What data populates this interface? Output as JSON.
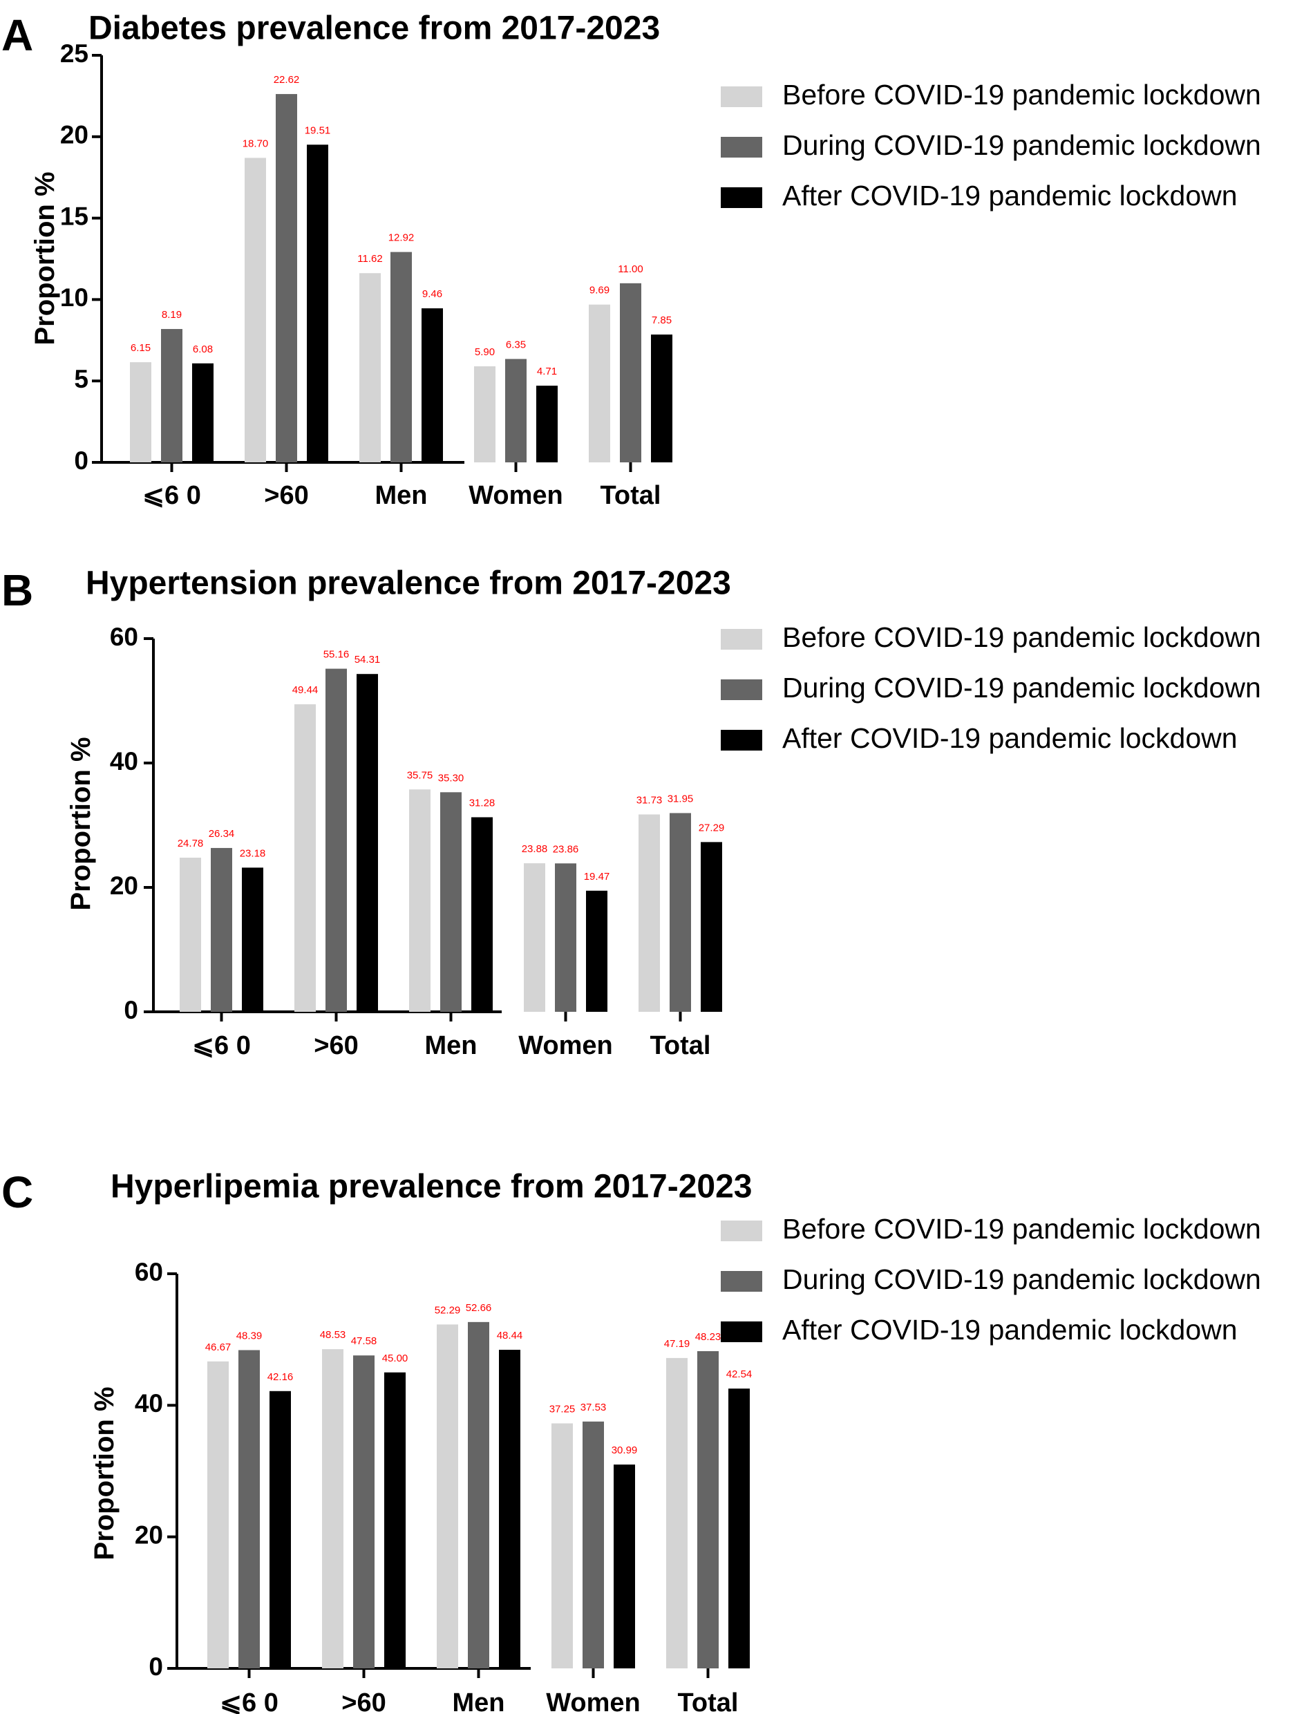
{
  "chart_data": [
    {
      "type": "bar",
      "panel": "A",
      "title": "Diabetes prevalence from 2017-2023",
      "xlabel": "",
      "ylabel": "Proportion %",
      "ylim": [
        0,
        25
      ],
      "yticks": [
        0,
        5,
        10,
        15,
        20,
        25
      ],
      "categories": [
        "⩽6 0",
        ">60",
        "Men",
        "Women",
        "Total"
      ],
      "series": [
        {
          "name": "Before COVID-19 pandemic lockdown",
          "color": "#d4d4d4",
          "values": [
            6.15,
            18.7,
            11.62,
            5.9,
            9.69
          ],
          "labels": [
            "6.15",
            "18.70",
            "11.62",
            "5.90",
            "9.69"
          ]
        },
        {
          "name": "During COVID-19 pandemic lockdown",
          "color": "#656565",
          "values": [
            8.19,
            22.62,
            12.92,
            6.35,
            11.0
          ],
          "labels": [
            "8.19",
            "22.62",
            "12.92",
            "6.35",
            "11.00"
          ]
        },
        {
          "name": "After COVID-19 pandemic lockdown",
          "color": "#000000",
          "values": [
            6.08,
            19.51,
            9.46,
            4.71,
            7.85
          ],
          "labels": [
            "6.08",
            "19.51",
            "9.46",
            "4.71",
            "7.85"
          ]
        }
      ],
      "legend": "top-right",
      "grid": false
    },
    {
      "type": "bar",
      "panel": "B",
      "title": "Hypertension prevalence from 2017-2023",
      "xlabel": "",
      "ylabel": "Proportion %",
      "ylim": [
        0,
        60
      ],
      "yticks": [
        0,
        20,
        40,
        60
      ],
      "categories": [
        "⩽6 0",
        ">60",
        "Men",
        "Women",
        "Total"
      ],
      "series": [
        {
          "name": "Before COVID-19 pandemic lockdown",
          "color": "#d4d4d4",
          "values": [
            24.78,
            49.44,
            35.75,
            23.88,
            31.73
          ],
          "labels": [
            "24.78",
            "49.44",
            "35.75",
            "23.88",
            "31.73"
          ]
        },
        {
          "name": "During COVID-19 pandemic lockdown",
          "color": "#656565",
          "values": [
            26.34,
            55.16,
            35.3,
            23.86,
            31.95
          ],
          "labels": [
            "26.34",
            "55.16",
            "35.30",
            "23.86",
            "31.95"
          ]
        },
        {
          "name": "After COVID-19 pandemic lockdown",
          "color": "#000000",
          "values": [
            23.18,
            54.31,
            31.28,
            19.47,
            27.29
          ],
          "labels": [
            "23.18",
            "54.31",
            "31.28",
            "19.47",
            "27.29"
          ]
        }
      ],
      "legend": "top-right",
      "grid": false
    },
    {
      "type": "bar",
      "panel": "C",
      "title": "Hyperlipemia prevalence from 2017-2023",
      "xlabel": "",
      "ylabel": "Proportion %",
      "ylim": [
        0,
        60
      ],
      "yticks": [
        0,
        20,
        40,
        60
      ],
      "categories": [
        "⩽6 0",
        ">60",
        "Men",
        "Women",
        "Total"
      ],
      "series": [
        {
          "name": "Before COVID-19 pandemic lockdown",
          "color": "#d4d4d4",
          "values": [
            46.67,
            48.53,
            52.29,
            37.25,
            47.19
          ],
          "labels": [
            "46.67",
            "48.53",
            "52.29",
            "37.25",
            "47.19"
          ]
        },
        {
          "name": "During COVID-19 pandemic lockdown",
          "color": "#656565",
          "values": [
            48.39,
            47.58,
            52.66,
            37.53,
            48.23
          ],
          "labels": [
            "48.39",
            "47.58",
            "52.66",
            "37.53",
            "48.23"
          ]
        },
        {
          "name": "After COVID-19 pandemic lockdown",
          "color": "#000000",
          "values": [
            42.16,
            45.0,
            48.44,
            30.99,
            42.54
          ],
          "labels": [
            "42.16",
            "45.00",
            "48.44",
            "30.99",
            "42.54"
          ]
        }
      ],
      "legend": "top-right",
      "grid": false
    }
  ]
}
